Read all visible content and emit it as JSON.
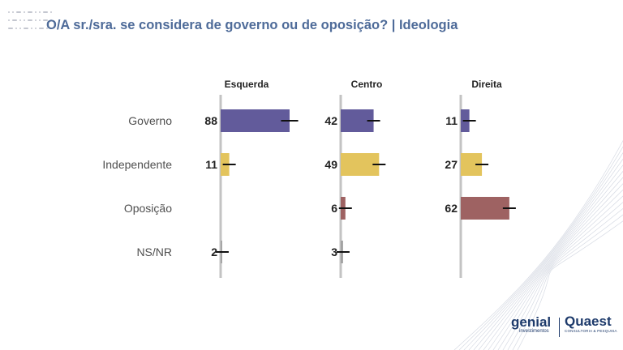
{
  "title": "O/A sr./sra.  se considera de governo ou de oposição? | Ideologia",
  "logos": {
    "genial": "genial",
    "genial_sub": "investimentos",
    "quaest": "Quaest",
    "quaest_sub": "CONSULTORIA & PESQUISA"
  },
  "chart_data": {
    "type": "bar",
    "orientation": "horizontal",
    "value_scale_max": 100,
    "categories": [
      "Governo",
      "Independente",
      "Oposição",
      "NS/NR"
    ],
    "category_colors": {
      "Governo": "#625b9b",
      "Independente": "#e3c45d",
      "Oposição": "#9e6262",
      "NS/NR": "#a3a3a3"
    },
    "error_bar_color": "#111111",
    "axis_color": "#c3c3c3",
    "panels": [
      {
        "name": "Esquerda",
        "values": [
          88,
          11,
          null,
          2
        ],
        "labels": [
          "88",
          "11",
          "",
          "2"
        ]
      },
      {
        "name": "Centro",
        "values": [
          42,
          49,
          6,
          3
        ],
        "labels": [
          "42",
          "49",
          "6",
          "3"
        ]
      },
      {
        "name": "Direita",
        "values": [
          11,
          27,
          62,
          null
        ],
        "labels": [
          "11",
          "27",
          "62",
          ""
        ]
      }
    ]
  }
}
